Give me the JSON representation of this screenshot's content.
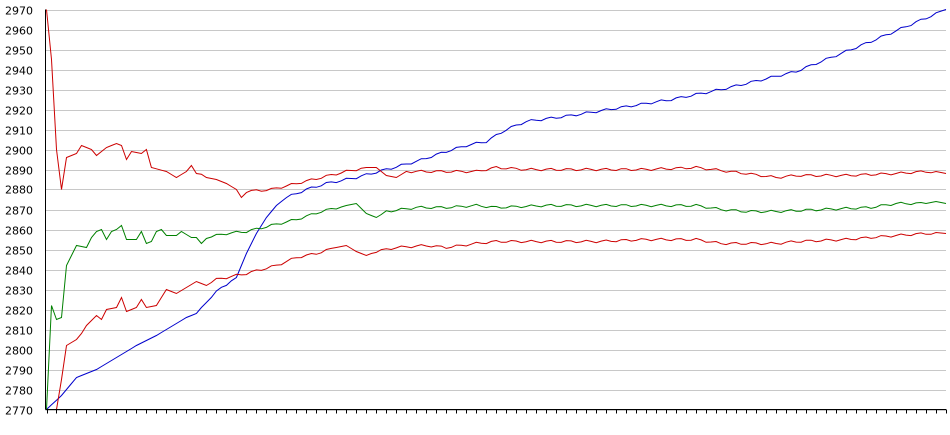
{
  "chart_data": {
    "type": "line",
    "title": "",
    "xlabel": "",
    "ylabel": "",
    "ylim": [
      2770,
      2970
    ],
    "yticks": [
      "2970",
      "2960",
      "2950",
      "2940",
      "2930",
      "2920",
      "2910",
      "2900",
      "2890",
      "2880",
      "2870",
      "2860",
      "2850",
      "2840",
      "2830",
      "2820",
      "2810",
      "2800",
      "2790",
      "2780",
      "2770"
    ],
    "grid": true,
    "legend": "none",
    "x_count": 181,
    "series": [
      {
        "color": "#0000cc",
        "anchors": [
          [
            0,
            2770
          ],
          [
            3,
            2777
          ],
          [
            6,
            2786
          ],
          [
            10,
            2790
          ],
          [
            14,
            2796
          ],
          [
            18,
            2802
          ],
          [
            22,
            2807
          ],
          [
            26,
            2813
          ],
          [
            28,
            2816
          ],
          [
            30,
            2818
          ],
          [
            32,
            2824
          ],
          [
            35,
            2831
          ],
          [
            38,
            2836
          ],
          [
            40,
            2848
          ],
          [
            42,
            2858
          ],
          [
            44,
            2866
          ],
          [
            46,
            2872
          ],
          [
            48,
            2876
          ],
          [
            52,
            2880
          ],
          [
            56,
            2883
          ],
          [
            62,
            2886
          ],
          [
            68,
            2890
          ],
          [
            74,
            2894
          ],
          [
            80,
            2899
          ],
          [
            84,
            2902
          ],
          [
            88,
            2904
          ],
          [
            92,
            2910
          ],
          [
            96,
            2914
          ],
          [
            105,
            2917
          ],
          [
            115,
            2921
          ],
          [
            125,
            2925
          ],
          [
            135,
            2930
          ],
          [
            150,
            2939
          ],
          [
            165,
            2954
          ],
          [
            180,
            2970
          ]
        ]
      },
      {
        "color": "#cc0000",
        "anchors": [
          [
            0,
            2970
          ],
          [
            1,
            2945
          ],
          [
            2,
            2900
          ],
          [
            3,
            2880
          ],
          [
            4,
            2896
          ],
          [
            6,
            2898
          ],
          [
            7,
            2902
          ],
          [
            9,
            2900
          ],
          [
            10,
            2897
          ],
          [
            12,
            2901
          ],
          [
            14,
            2903
          ],
          [
            15,
            2902
          ],
          [
            16,
            2895
          ],
          [
            17,
            2899
          ],
          [
            19,
            2898
          ],
          [
            20,
            2900
          ],
          [
            21,
            2891
          ],
          [
            24,
            2889
          ],
          [
            26,
            2886
          ],
          [
            28,
            2889
          ],
          [
            29,
            2892
          ],
          [
            30,
            2888
          ],
          [
            34,
            2885
          ],
          [
            36,
            2883
          ],
          [
            38,
            2880
          ],
          [
            39,
            2876
          ],
          [
            40,
            2879
          ],
          [
            45,
            2880
          ],
          [
            50,
            2883
          ],
          [
            55,
            2886
          ],
          [
            60,
            2889
          ],
          [
            64,
            2891
          ],
          [
            66,
            2891
          ],
          [
            68,
            2887
          ],
          [
            70,
            2886
          ],
          [
            72,
            2889
          ],
          [
            80,
            2889
          ],
          [
            86,
            2889
          ],
          [
            90,
            2891
          ],
          [
            96,
            2890
          ],
          [
            110,
            2890
          ],
          [
            120,
            2890
          ],
          [
            130,
            2891
          ],
          [
            140,
            2888
          ],
          [
            146,
            2886
          ],
          [
            150,
            2887
          ],
          [
            160,
            2887
          ],
          [
            170,
            2888
          ],
          [
            176,
            2889
          ],
          [
            180,
            2888
          ]
        ]
      },
      {
        "color": "#008000",
        "anchors": [
          [
            0,
            2770
          ],
          [
            1,
            2822
          ],
          [
            2,
            2815
          ],
          [
            3,
            2816
          ],
          [
            4,
            2842
          ],
          [
            6,
            2852
          ],
          [
            8,
            2851
          ],
          [
            9,
            2856
          ],
          [
            10,
            2859
          ],
          [
            11,
            2860
          ],
          [
            12,
            2855
          ],
          [
            13,
            2859
          ],
          [
            14,
            2860
          ],
          [
            15,
            2862
          ],
          [
            16,
            2855
          ],
          [
            18,
            2855
          ],
          [
            19,
            2859
          ],
          [
            20,
            2853
          ],
          [
            21,
            2854
          ],
          [
            22,
            2859
          ],
          [
            23,
            2860
          ],
          [
            24,
            2857
          ],
          [
            26,
            2857
          ],
          [
            27,
            2859
          ],
          [
            29,
            2856
          ],
          [
            30,
            2856
          ],
          [
            31,
            2853
          ],
          [
            32,
            2856
          ],
          [
            36,
            2858
          ],
          [
            40,
            2859
          ],
          [
            45,
            2862
          ],
          [
            50,
            2865
          ],
          [
            55,
            2869
          ],
          [
            60,
            2872
          ],
          [
            62,
            2873
          ],
          [
            64,
            2868
          ],
          [
            66,
            2866
          ],
          [
            68,
            2869
          ],
          [
            74,
            2871
          ],
          [
            80,
            2871
          ],
          [
            86,
            2872
          ],
          [
            90,
            2871
          ],
          [
            100,
            2872
          ],
          [
            110,
            2872
          ],
          [
            120,
            2872
          ],
          [
            130,
            2872
          ],
          [
            135,
            2870
          ],
          [
            140,
            2869
          ],
          [
            146,
            2869
          ],
          [
            155,
            2870
          ],
          [
            165,
            2871
          ],
          [
            170,
            2873
          ],
          [
            176,
            2873
          ],
          [
            178,
            2874
          ],
          [
            180,
            2873
          ]
        ]
      },
      {
        "color": "#cc0000",
        "anchors": [
          [
            0,
            2770
          ],
          [
            2,
            2770
          ],
          [
            3,
            2785
          ],
          [
            4,
            2802
          ],
          [
            6,
            2805
          ],
          [
            7,
            2808
          ],
          [
            8,
            2812
          ],
          [
            10,
            2817
          ],
          [
            11,
            2815
          ],
          [
            12,
            2820
          ],
          [
            14,
            2821
          ],
          [
            15,
            2826
          ],
          [
            16,
            2819
          ],
          [
            18,
            2821
          ],
          [
            19,
            2825
          ],
          [
            20,
            2821
          ],
          [
            22,
            2822
          ],
          [
            24,
            2830
          ],
          [
            26,
            2828
          ],
          [
            28,
            2831
          ],
          [
            30,
            2834
          ],
          [
            32,
            2832
          ],
          [
            34,
            2835
          ],
          [
            40,
            2838
          ],
          [
            46,
            2842
          ],
          [
            50,
            2846
          ],
          [
            54,
            2848
          ],
          [
            58,
            2851
          ],
          [
            60,
            2852
          ],
          [
            62,
            2849
          ],
          [
            64,
            2847
          ],
          [
            66,
            2849
          ],
          [
            70,
            2851
          ],
          [
            76,
            2852
          ],
          [
            80,
            2851
          ],
          [
            86,
            2853
          ],
          [
            90,
            2854
          ],
          [
            100,
            2854
          ],
          [
            110,
            2854
          ],
          [
            120,
            2855
          ],
          [
            130,
            2855
          ],
          [
            135,
            2853
          ],
          [
            140,
            2853
          ],
          [
            146,
            2853
          ],
          [
            150,
            2854
          ],
          [
            160,
            2855
          ],
          [
            165,
            2856
          ],
          [
            170,
            2857
          ],
          [
            176,
            2858
          ],
          [
            180,
            2858
          ]
        ]
      }
    ]
  }
}
